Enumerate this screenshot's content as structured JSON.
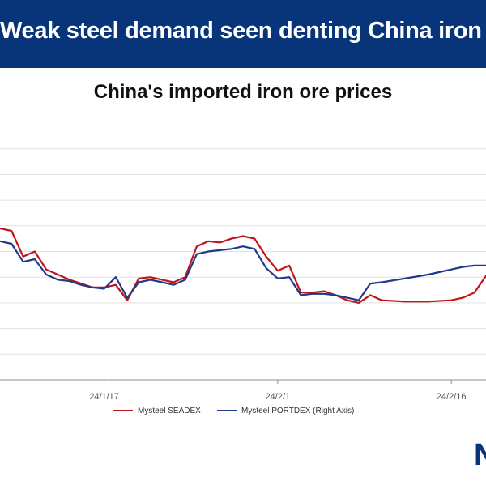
{
  "banner": {
    "title": "Weak steel demand seen denting China iron"
  },
  "brand": {
    "mark": "N"
  },
  "chart_data": {
    "type": "line",
    "title": "China's imported iron ore prices",
    "x_ticks": [
      "24/1/17",
      "24/2/1",
      "24/2/16"
    ],
    "x_range": [
      "2024-01-08",
      "2024-02-19"
    ],
    "ylim": [
      0,
      10
    ],
    "grid": true,
    "legend_position": "bottom",
    "series": [
      {
        "name": "Mysteel SEADEX",
        "color": "#c0141b",
        "x": [
          "2024-01-08",
          "2024-01-09",
          "2024-01-10",
          "2024-01-11",
          "2024-01-12",
          "2024-01-13",
          "2024-01-14",
          "2024-01-15",
          "2024-01-16",
          "2024-01-17",
          "2024-01-18",
          "2024-01-19",
          "2024-01-20",
          "2024-01-21",
          "2024-01-22",
          "2024-01-23",
          "2024-01-24",
          "2024-01-25",
          "2024-01-26",
          "2024-01-27",
          "2024-01-28",
          "2024-01-29",
          "2024-01-30",
          "2024-01-31",
          "2024-02-01",
          "2024-02-02",
          "2024-02-03",
          "2024-02-04",
          "2024-02-05",
          "2024-02-06",
          "2024-02-07",
          "2024-02-08",
          "2024-02-09",
          "2024-02-10",
          "2024-02-12",
          "2024-02-14",
          "2024-02-16",
          "2024-02-17",
          "2024-02-18",
          "2024-02-19"
        ],
        "values": [
          5.9,
          5.8,
          4.8,
          5.0,
          4.3,
          4.1,
          3.9,
          3.75,
          3.6,
          3.6,
          3.7,
          3.1,
          3.95,
          4.0,
          3.9,
          3.8,
          4.0,
          5.2,
          5.4,
          5.35,
          5.5,
          5.6,
          5.5,
          4.8,
          4.25,
          4.45,
          3.4,
          3.4,
          3.45,
          3.3,
          3.1,
          3.0,
          3.3,
          3.1,
          3.05,
          3.05,
          3.1,
          3.2,
          3.4,
          4.05
        ]
      },
      {
        "name": "Mysteel PORTDEX (Right Axis)",
        "color": "#1f3a8a",
        "x": [
          "2024-01-08",
          "2024-01-09",
          "2024-01-10",
          "2024-01-11",
          "2024-01-12",
          "2024-01-13",
          "2024-01-14",
          "2024-01-15",
          "2024-01-16",
          "2024-01-17",
          "2024-01-18",
          "2024-01-19",
          "2024-01-20",
          "2024-01-21",
          "2024-01-22",
          "2024-01-23",
          "2024-01-24",
          "2024-01-25",
          "2024-01-26",
          "2024-01-27",
          "2024-01-28",
          "2024-01-29",
          "2024-01-30",
          "2024-01-31",
          "2024-02-01",
          "2024-02-02",
          "2024-02-03",
          "2024-02-04",
          "2024-02-05",
          "2024-02-06",
          "2024-02-07",
          "2024-02-08",
          "2024-02-09",
          "2024-02-10",
          "2024-02-12",
          "2024-02-14",
          "2024-02-16",
          "2024-02-17",
          "2024-02-18",
          "2024-02-19"
        ],
        "values": [
          5.4,
          5.3,
          4.6,
          4.7,
          4.1,
          3.9,
          3.85,
          3.7,
          3.6,
          3.55,
          4.0,
          3.2,
          3.8,
          3.9,
          3.8,
          3.7,
          3.9,
          4.9,
          5.0,
          5.05,
          5.1,
          5.2,
          5.1,
          4.35,
          3.95,
          4.0,
          3.3,
          3.35,
          3.35,
          3.3,
          3.2,
          3.1,
          3.75,
          3.8,
          3.95,
          4.1,
          4.3,
          4.4,
          4.45,
          4.45
        ]
      }
    ]
  }
}
